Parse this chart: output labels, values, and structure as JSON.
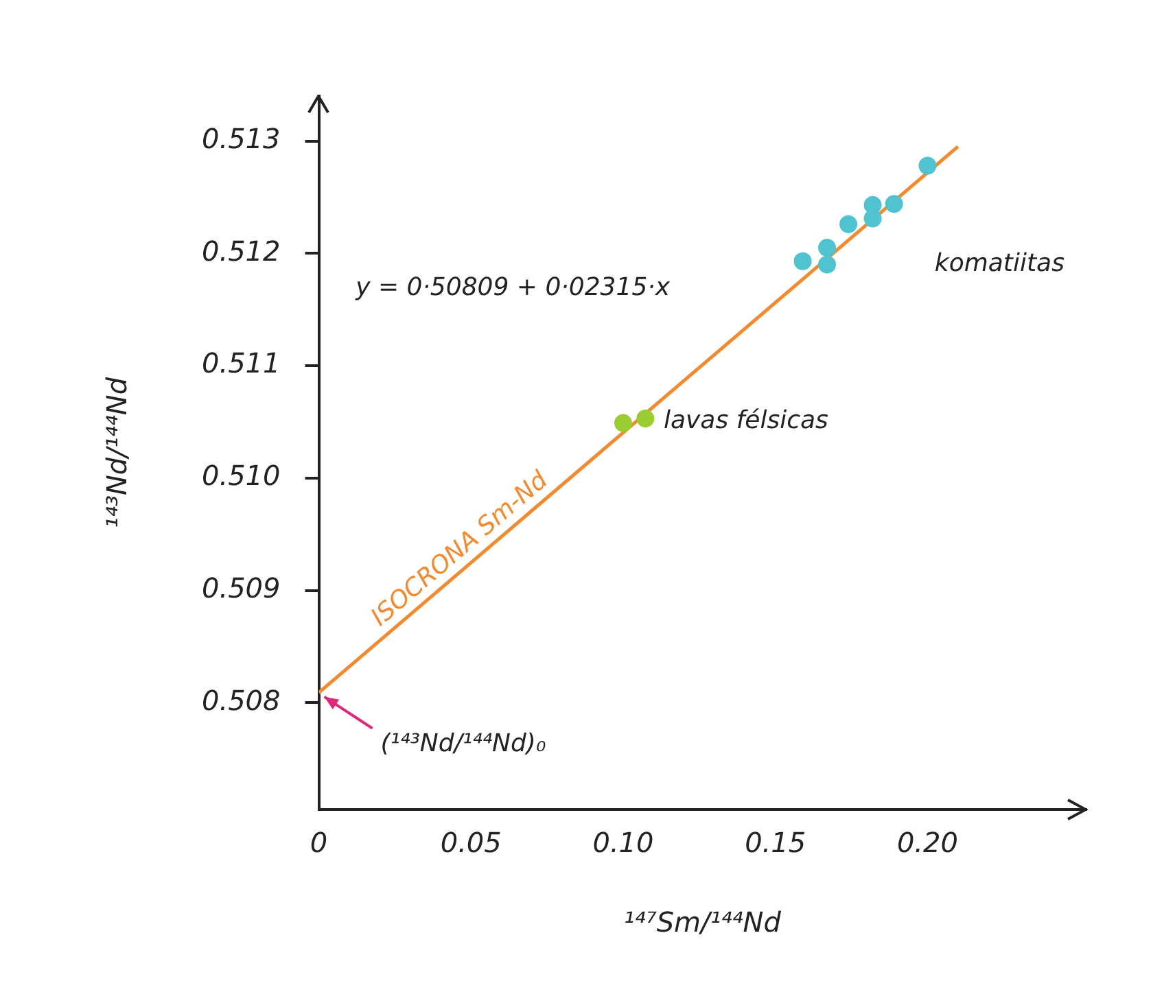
{
  "chart_data": {
    "type": "scatter",
    "xlabel": "¹⁴⁷Sm/¹⁴⁴Nd",
    "ylabel": "¹⁴³Nd/¹⁴⁴Nd",
    "xlim": [
      0,
      0.252
    ],
    "ylim": [
      0.50705,
      0.5134
    ],
    "xticks": [
      0,
      0.05,
      {
        "value": 0.1,
        "label": "0.10"
      },
      0.15,
      {
        "value": 0.2,
        "label": "0.20"
      }
    ],
    "yticks": [
      0.508,
      0.509,
      {
        "value": 0.51,
        "label": "0.510"
      },
      0.511,
      0.512,
      0.513
    ],
    "grid": false,
    "legend": false,
    "marker": "circle",
    "series": [
      {
        "type": "line",
        "marker": "none",
        "color": "#f28a30",
        "x": [
          0,
          0.21
        ],
        "values": [
          0.50809,
          0.51295
        ]
      },
      {
        "color": "#9acd32",
        "x": [
          0.1,
          0.1073
        ],
        "values": [
          0.51049,
          0.51053
        ]
      },
      {
        "color": "#4fc3d0",
        "x": [
          0.159,
          0.167,
          0.167,
          0.174,
          0.182,
          0.182,
          0.189,
          0.2
        ],
        "values": [
          0.51193,
          0.51205,
          0.5119,
          0.51226,
          0.51243,
          0.51231,
          0.51244,
          0.51278
        ]
      }
    ],
    "annotations": [
      "y = 0·50809 + 0·02315·x",
      "komatiitas",
      {
        "text": "lavas félsicas",
        "x": 0.107,
        "y": 0.5105
      },
      {
        "text": "ISOCRONA Sm-Nd",
        "x": 0.05,
        "y": 0.50925
      },
      {
        "text": "(¹⁴³Nd/¹⁴⁴Nd)₀",
        "x": 0,
        "y": 0.50809
      }
    ]
  }
}
